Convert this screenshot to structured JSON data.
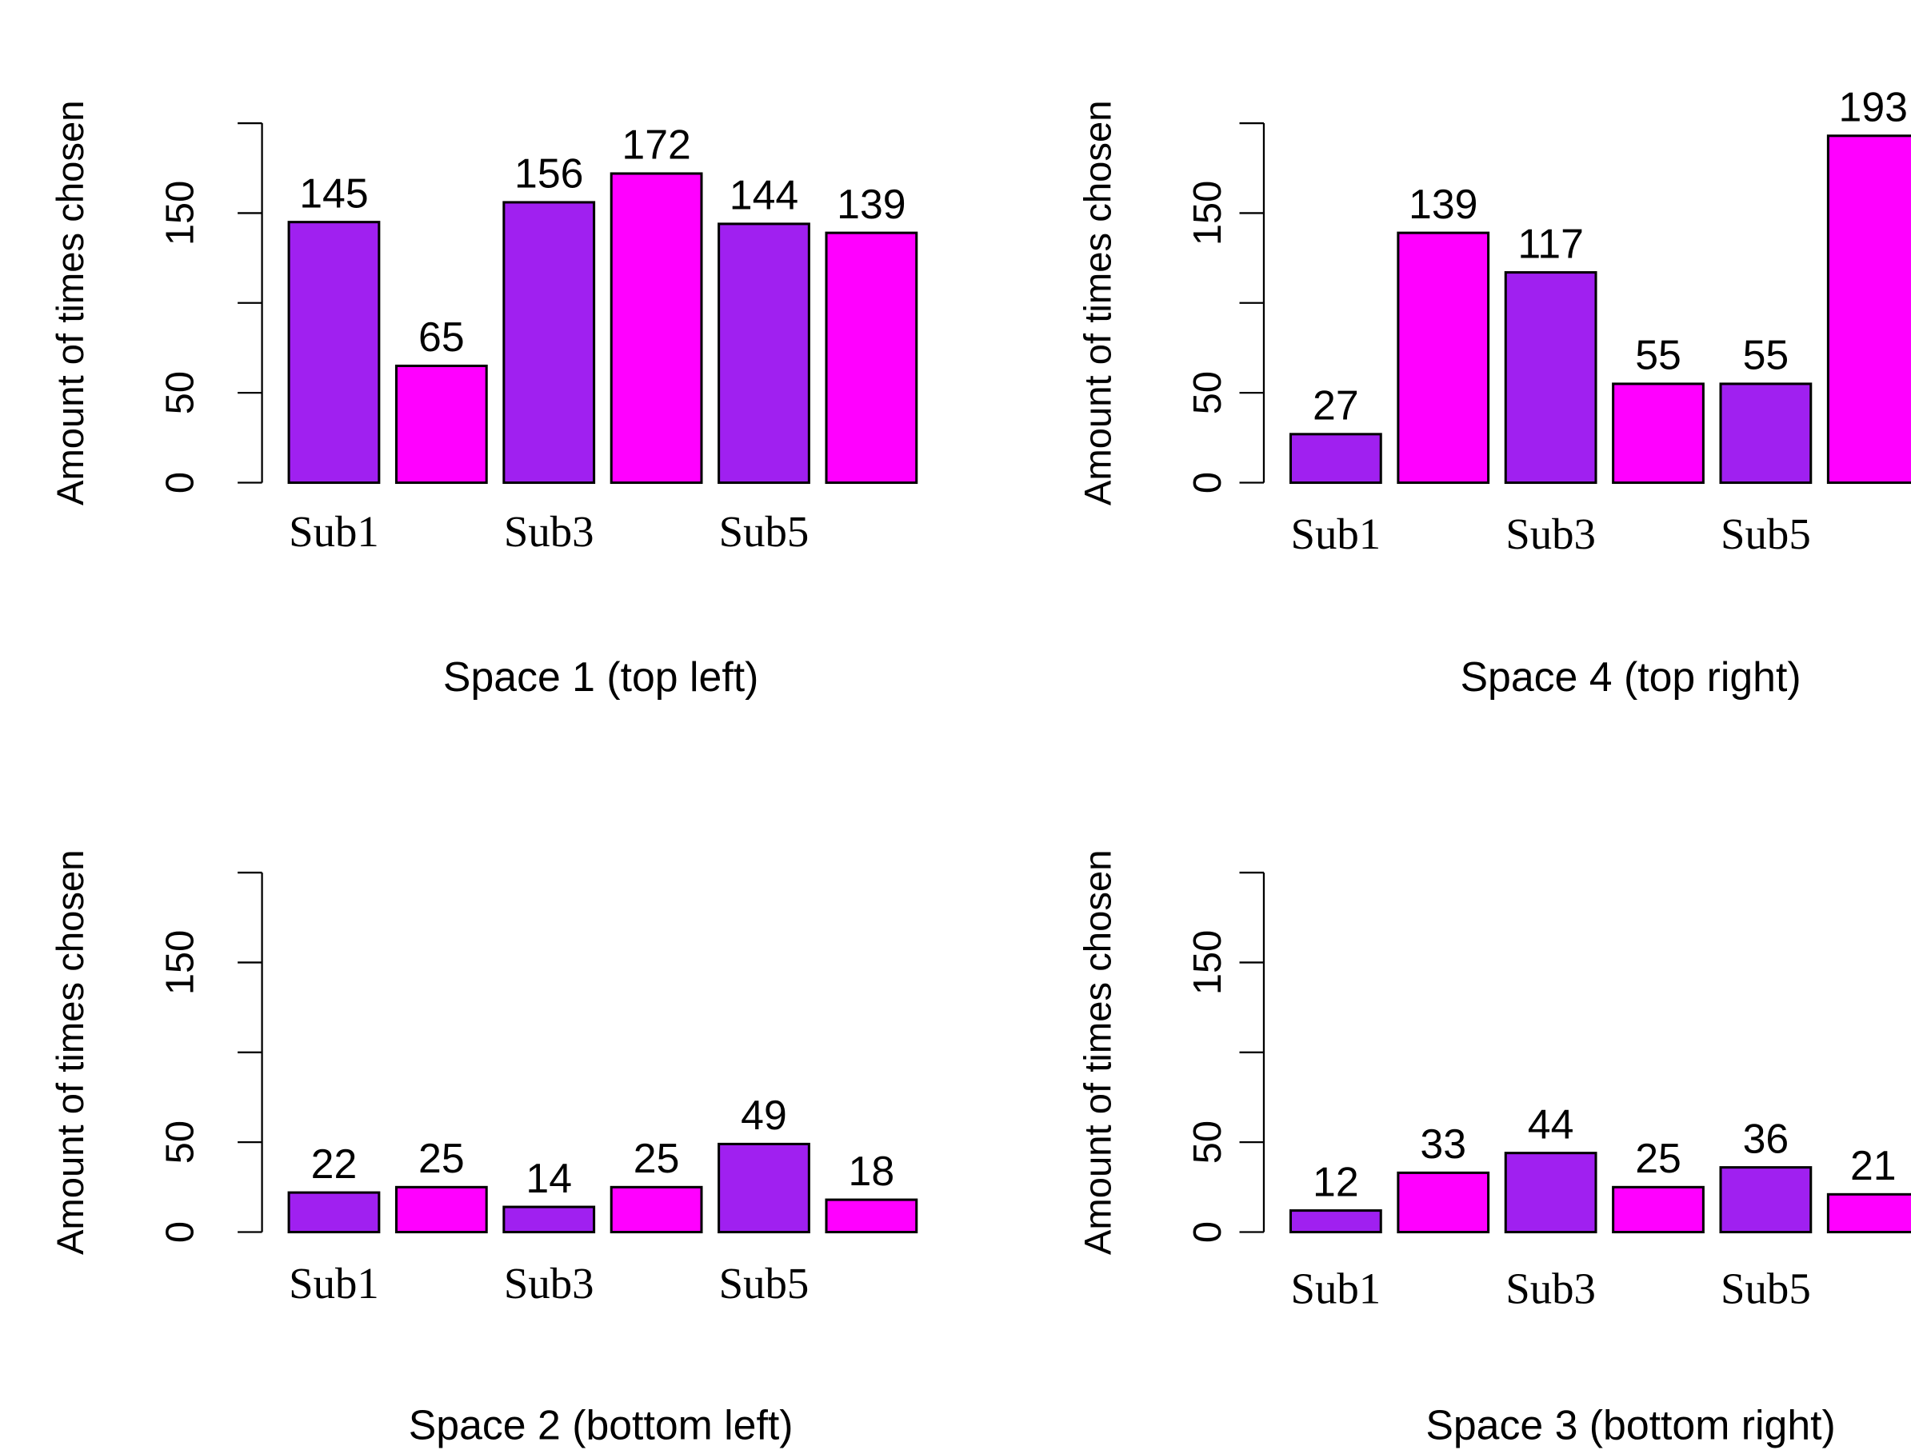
{
  "chart_data": [
    {
      "type": "bar",
      "xlabel": "Space 1 (top left)",
      "ylabel": "Amount of times chosen",
      "categories": [
        "Sub1",
        null,
        "Sub3",
        null,
        "Sub5",
        null
      ],
      "values": [
        145,
        65,
        156,
        172,
        144,
        139
      ],
      "colors": [
        "#a020f0",
        "#ff00ff",
        "#a020f0",
        "#ff00ff",
        "#a020f0",
        "#ff00ff"
      ],
      "ylim": [
        0,
        200
      ],
      "yticks": [
        0,
        50,
        {
          "value": 100,
          "label": null
        },
        150,
        {
          "value": 200,
          "label": null
        }
      ]
    },
    {
      "type": "bar",
      "xlabel": "Space 4 (top right)",
      "ylabel": "Amount of times chosen",
      "categories": [
        "Sub1",
        null,
        "Sub3",
        null,
        "Sub5",
        null
      ],
      "values": [
        27,
        139,
        117,
        55,
        55,
        193
      ],
      "colors": [
        "#a020f0",
        "#ff00ff",
        "#a020f0",
        "#ff00ff",
        "#a020f0",
        "#ff00ff"
      ],
      "ylim": [
        0,
        200
      ],
      "yticks": [
        0,
        50,
        {
          "value": 100,
          "label": null
        },
        150,
        {
          "value": 200,
          "label": null
        }
      ]
    },
    {
      "type": "bar",
      "xlabel": "Space 2 (bottom left)",
      "ylabel": "Amount of times chosen",
      "categories": [
        "Sub1",
        null,
        "Sub3",
        null,
        "Sub5",
        null
      ],
      "values": [
        22,
        25,
        14,
        25,
        49,
        18
      ],
      "colors": [
        "#a020f0",
        "#ff00ff",
        "#a020f0",
        "#ff00ff",
        "#a020f0",
        "#ff00ff"
      ],
      "ylim": [
        0,
        200
      ],
      "yticks": [
        0,
        50,
        {
          "value": 100,
          "label": null
        },
        150,
        {
          "value": 200,
          "label": null
        }
      ]
    },
    {
      "type": "bar",
      "xlabel": "Space 3 (bottom right)",
      "ylabel": "Amount of times chosen",
      "categories": [
        "Sub1",
        null,
        "Sub3",
        null,
        "Sub5",
        null
      ],
      "values": [
        12,
        33,
        44,
        25,
        36,
        21
      ],
      "colors": [
        "#a020f0",
        "#ff00ff",
        "#a020f0",
        "#ff00ff",
        "#a020f0",
        "#ff00ff"
      ],
      "ylim": [
        0,
        200
      ],
      "yticks": [
        0,
        50,
        {
          "value": 100,
          "label": null
        },
        150,
        {
          "value": 200,
          "label": null
        }
      ]
    }
  ]
}
